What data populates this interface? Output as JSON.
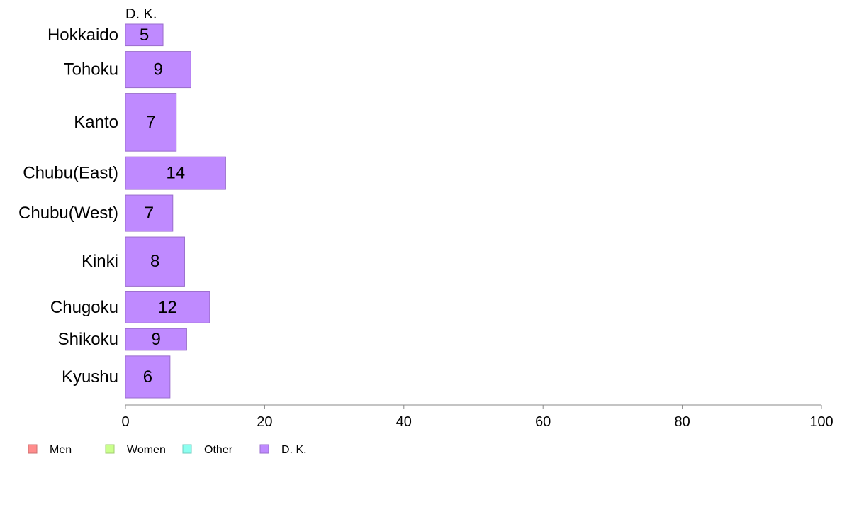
{
  "chart_data": {
    "type": "bar",
    "orientation": "horizontal",
    "stacked": true,
    "series_title": "D. K.",
    "categories": [
      "Hokkaido",
      "Tohoku",
      "Kanto",
      "Chubu(East)",
      "Chubu(West)",
      "Kinki",
      "Chugoku",
      "Shikoku",
      "Kyushu"
    ],
    "category_weights": [
      3,
      5,
      8,
      4.5,
      5,
      6.8,
      4.3,
      3,
      5.8
    ],
    "series": [
      {
        "name": "D. K.",
        "color": "#bf8aff",
        "stroke": "#9a6ecc",
        "values": [
          5.4,
          9.4,
          7.3,
          14.4,
          6.8,
          8.5,
          12.1,
          8.8,
          6.4
        ],
        "labels": [
          "5",
          "9",
          "7",
          "14",
          "7",
          "8",
          "12",
          "9",
          "6"
        ]
      }
    ],
    "xlim": [
      0,
      100
    ],
    "xticks": [
      0,
      20,
      40,
      60,
      80,
      100
    ],
    "xtick_labels": [
      "0",
      "20",
      "40",
      "60",
      "80",
      "100"
    ],
    "grid": false,
    "legend_position": "bottom-left",
    "legend": [
      {
        "name": "Men",
        "color": "#ff8c8c",
        "stroke": "#cc7070"
      },
      {
        "name": "Women",
        "color": "#caff8c",
        "stroke": "#a2cc70"
      },
      {
        "name": "Other",
        "color": "#8cfff0",
        "stroke": "#70ccc0"
      },
      {
        "name": "D. K.",
        "color": "#bf8aff",
        "stroke": "#9a6ecc"
      }
    ]
  }
}
